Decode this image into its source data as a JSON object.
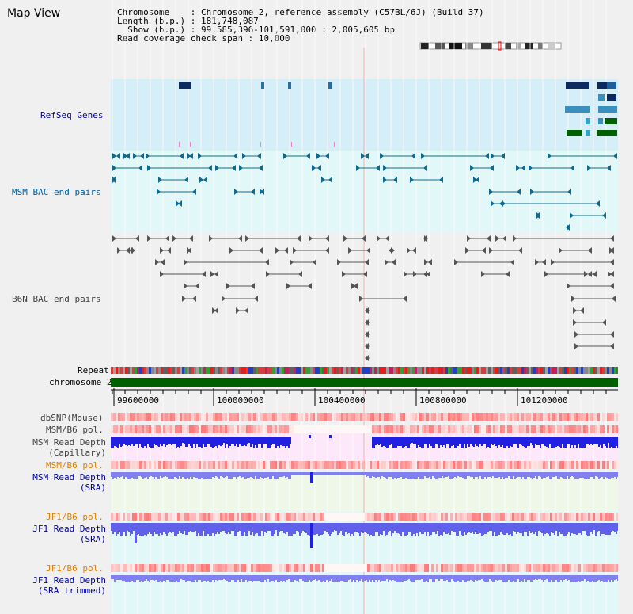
{
  "window": {
    "title": "Map View"
  },
  "info": {
    "line1": "Chromosome    : Chromosome 2, reference assembly (C57BL/6J) (Build 37)",
    "line2": "Length (b.p.) : 181,748,087",
    "line3": "  Show (b.p.) : 99,585,396-101,591,000 : 2,005,605 bp",
    "line4": "Read coverage check span : 10,000"
  },
  "tracks": {
    "refseq": "RefSeq Genes",
    "msm_bac": "MSM BAC end pairs",
    "b6n_bac": "B6N BAC end pairs",
    "repeat": "Repeat",
    "chromosome": "chromosome 2",
    "dbsnp": "dbSNP(Mouse)",
    "msm_b6_pol_1": "MSM/B6 pol.",
    "msm_depth_cap_1": "MSM Read Depth",
    "msm_depth_cap_2": "(Capillary)",
    "msm_b6_pol_2": "MSM/B6 pol.",
    "msm_depth_sra_1": "MSM Read Depth",
    "msm_depth_sra_2": "(SRA)",
    "jf1_b6_pol_1": "JF1/B6 pol.",
    "jf1_depth_sra_1": "JF1 Read Depth",
    "jf1_depth_sra_2": "(SRA)",
    "jf1_b6_pol_2": "JF1/B6 pol.",
    "jf1_depth_trim_1": "JF1 Read Depth",
    "jf1_depth_trim_2": "(SRA trimmed)"
  },
  "ruler": {
    "ticks": [
      "99600000",
      "100000000",
      "100400000",
      "100800000",
      "101200000"
    ]
  },
  "colors": {
    "refseq_bg": "#d6eef8",
    "bac_bg": "#e2f7f7",
    "msm_cap_bg": "#fde8fb",
    "msm_sra_bg": "#eef7e8",
    "jf1_bg": "#e2f7f7",
    "label_blue": "#0000a0",
    "label_orange": "#e08000",
    "chrom_green": "#006000",
    "depth_blue": "#2020e0",
    "depth_light": "#8080f0"
  }
}
